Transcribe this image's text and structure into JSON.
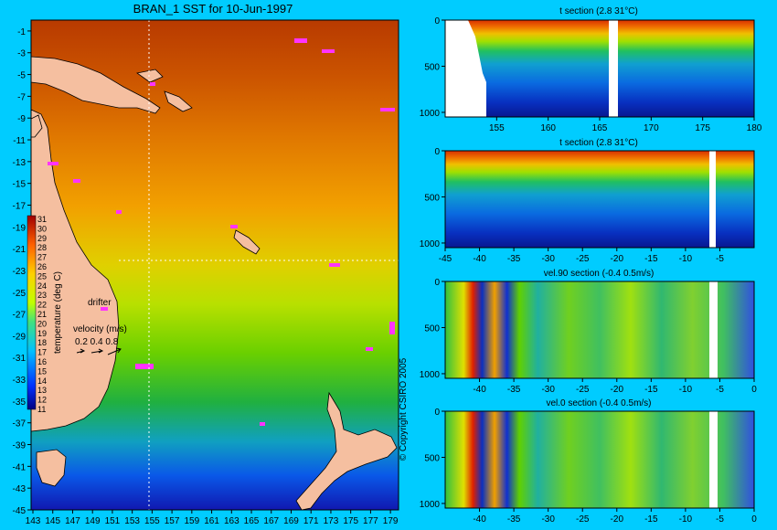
{
  "background_color": "#00ccff",
  "map": {
    "title": "BRAN_1 SST for 10-Jun-1997",
    "xticks": [
      "143",
      "145",
      "147",
      "149",
      "151",
      "153",
      "155",
      "157",
      "159",
      "161",
      "163",
      "165",
      "167",
      "169",
      "171",
      "173",
      "175",
      "177",
      "179"
    ],
    "yticks": [
      "-1",
      "-3",
      "-5",
      "-7",
      "-9",
      "-11",
      "-13",
      "-15",
      "-17",
      "-19",
      "-21",
      "-23",
      "-25",
      "-27",
      "-29",
      "-31",
      "-33",
      "-35",
      "-37",
      "-39",
      "-41",
      "-43",
      "-45"
    ],
    "land_color": "#f5bfa0",
    "drifter_color": "#ff33ff",
    "colorbar": {
      "ticks": [
        "31",
        "30",
        "29",
        "28",
        "27",
        "26",
        "25",
        "24",
        "23",
        "22",
        "21",
        "20",
        "19",
        "18",
        "17",
        "16",
        "15",
        "14",
        "13",
        "12",
        "11"
      ],
      "label": "temperature (deg C)"
    },
    "drifter_label": "drifter",
    "velocity": {
      "label": "velocity (m/s)",
      "scale_values": "0.2 0.4 0.8"
    },
    "copyright": "© Copyright CSIRO 2005"
  },
  "sections": [
    {
      "title": "t section (2.8      31°C)",
      "xticks": [
        "155",
        "160",
        "165",
        "170",
        "175",
        "180"
      ],
      "yticks": [
        "0",
        "500",
        "1000"
      ]
    },
    {
      "title": "t section (2.8      31°C)",
      "xticks": [
        "-45",
        "-40",
        "-35",
        "-30",
        "-25",
        "-20",
        "-15",
        "-10",
        "-5"
      ],
      "yticks": [
        "0",
        "500",
        "1000"
      ]
    },
    {
      "title": "vel.90 section (-0.4      0.5m/s)",
      "xticks": [
        "-40",
        "-35",
        "-30",
        "-25",
        "-20",
        "-15",
        "-10",
        "-5",
        "0"
      ],
      "yticks": [
        "0",
        "500",
        "1000"
      ]
    },
    {
      "title": "vel.0 section (-0.4      0.5m/s)",
      "xticks": [
        "-40",
        "-35",
        "-30",
        "-25",
        "-20",
        "-15",
        "-10",
        "-5",
        "0"
      ],
      "yticks": [
        "0",
        "500",
        "1000"
      ]
    }
  ],
  "chart_data": [
    {
      "type": "heatmap",
      "title": "BRAN_1 SST for 10-Jun-1997",
      "xlim": [
        143,
        180
      ],
      "ylim": [
        -45,
        0
      ],
      "colorbar_range": [
        11,
        31
      ],
      "colorbar_label": "temperature (deg C)",
      "description_values": {
        "xticks": [
          143,
          145,
          147,
          149,
          151,
          153,
          155,
          157,
          159,
          161,
          163,
          165,
          167,
          169,
          171,
          173,
          175,
          177,
          179
        ],
        "yticks": [
          -1,
          -3,
          -5,
          -7,
          -9,
          -11,
          -13,
          -15,
          -17,
          -19,
          -21,
          -23,
          -25,
          -27,
          -29,
          -31,
          -33,
          -35,
          -37,
          -39,
          -41,
          -43,
          -45
        ]
      }
    },
    {
      "type": "heatmap",
      "title": "t section (2.8      31°C)",
      "xlim": [
        150,
        180
      ],
      "ylim": [
        1050,
        0
      ],
      "value_range": [
        2.8,
        31
      ]
    },
    {
      "type": "heatmap",
      "title": "t section (2.8      31°C)",
      "xlim": [
        -45,
        0
      ],
      "ylim": [
        1050,
        0
      ],
      "value_range": [
        2.8,
        31
      ]
    },
    {
      "type": "heatmap",
      "title": "vel.90 section (-0.4      0.5m/s)",
      "xlim": [
        -45,
        0
      ],
      "ylim": [
        1050,
        0
      ],
      "value_range": [
        -0.4,
        0.5
      ]
    },
    {
      "type": "heatmap",
      "title": "vel.0 section (-0.4      0.5m/s)",
      "xlim": [
        -45,
        0
      ],
      "ylim": [
        1050,
        0
      ],
      "value_range": [
        -0.4,
        0.5
      ]
    }
  ]
}
